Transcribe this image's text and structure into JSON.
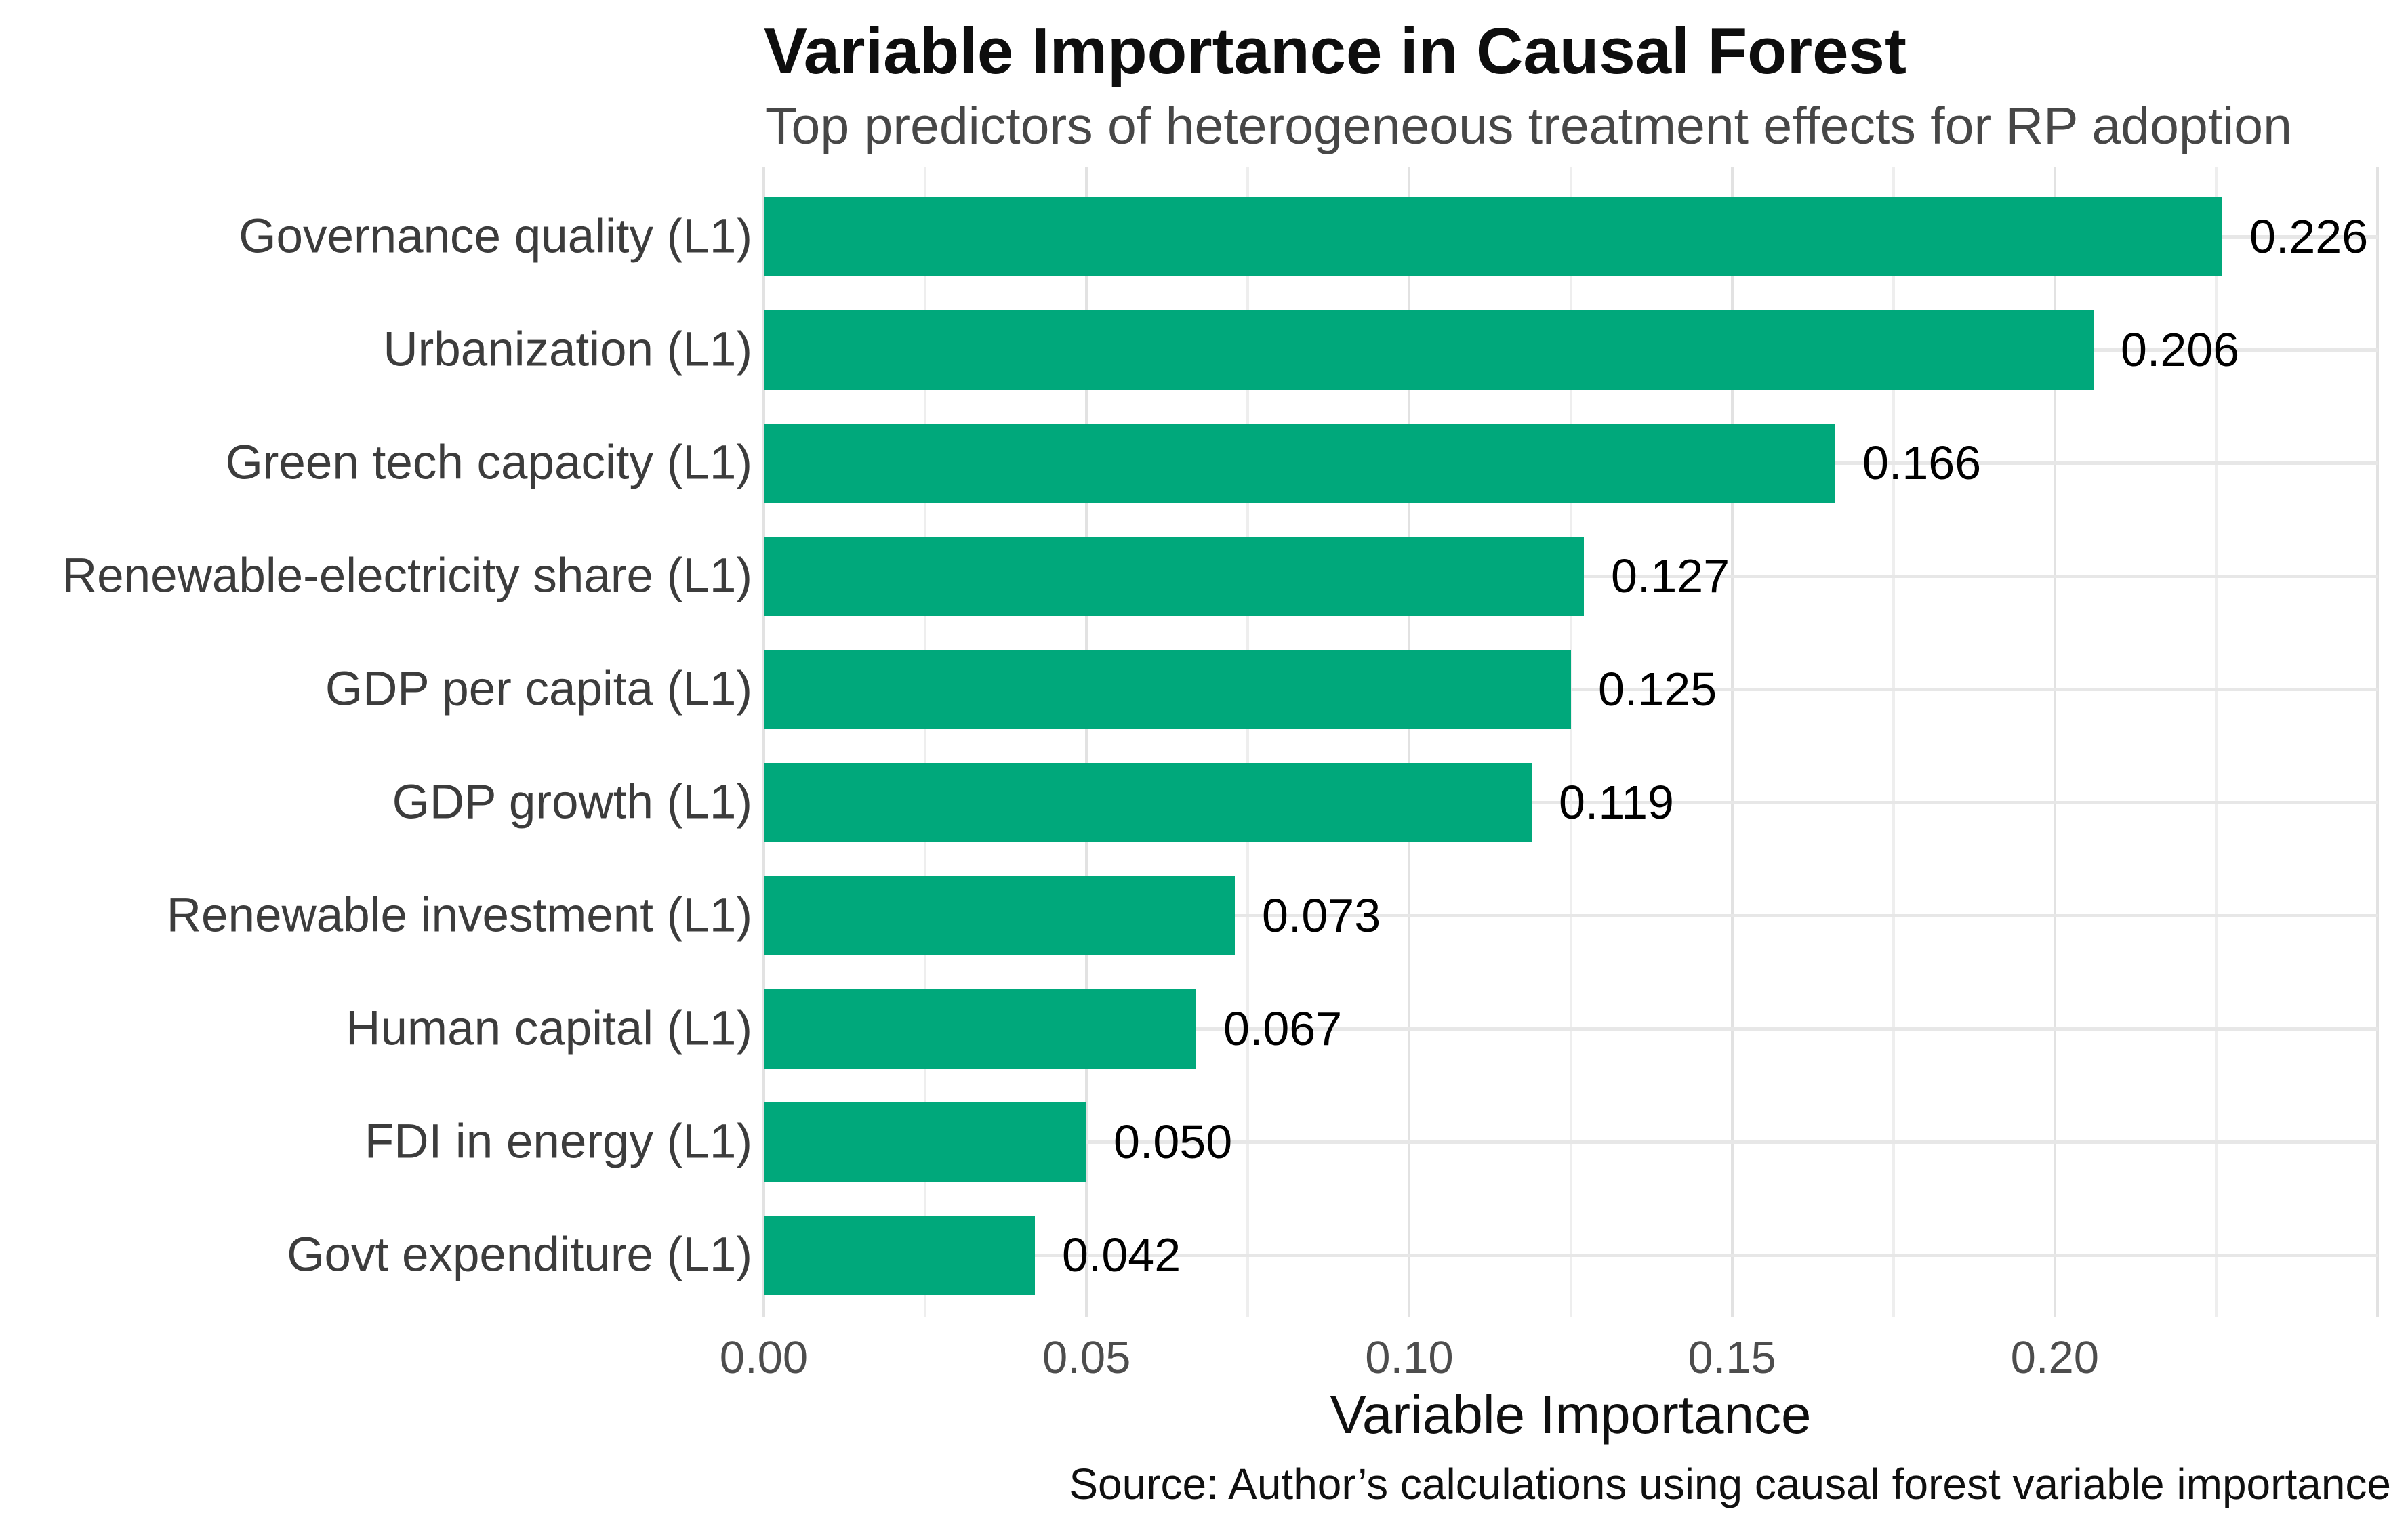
{
  "chart_data": {
    "type": "bar",
    "orientation": "horizontal",
    "title": "Variable Importance in Causal Forest",
    "subtitle": "Top predictors of heterogeneous treatment effects for RP adoption",
    "xlabel": "Variable Importance",
    "caption": "Source: Author’s calculations using causal forest variable importance",
    "categories": [
      "Governance quality (L1)",
      "Urbanization (L1)",
      "Green tech capacity (L1)",
      "Renewable-electricity share (L1)",
      "GDP per capita (L1)",
      "GDP growth (L1)",
      "Renewable investment (L1)",
      "Human capital (L1)",
      "FDI in energy (L1)",
      "Govt expenditure (L1)"
    ],
    "values": [
      0.226,
      0.206,
      0.166,
      0.127,
      0.125,
      0.119,
      0.073,
      0.067,
      0.05,
      0.042
    ],
    "value_labels": [
      "0.226",
      "0.206",
      "0.166",
      "0.127",
      "0.125",
      "0.119",
      "0.073",
      "0.067",
      "0.050",
      "0.042"
    ],
    "x_ticks": {
      "labels": [
        "0.00",
        "0.05",
        "0.10",
        "0.15",
        "0.20"
      ],
      "values": [
        0,
        0.05,
        0.1,
        0.15,
        0.2
      ]
    },
    "xlim": [
      0,
      0.25
    ],
    "grid": {
      "vertical_major_step": 0.05,
      "vertical_minor_step": 0.025,
      "horizontal": "category-centers",
      "visible": true
    },
    "legend": null,
    "colors": {
      "bar": "#00A87B",
      "grid_major": "#e2e2e2",
      "grid_minor": "#eeeeee",
      "grid_horizontal": "#e7e7e7",
      "title": "#0e0e0e",
      "subtitle": "#474747",
      "category_label": "#3c3c3c",
      "value_label": "#000000",
      "tick_label": "#4d4d4d",
      "background": "#ffffff"
    }
  }
}
